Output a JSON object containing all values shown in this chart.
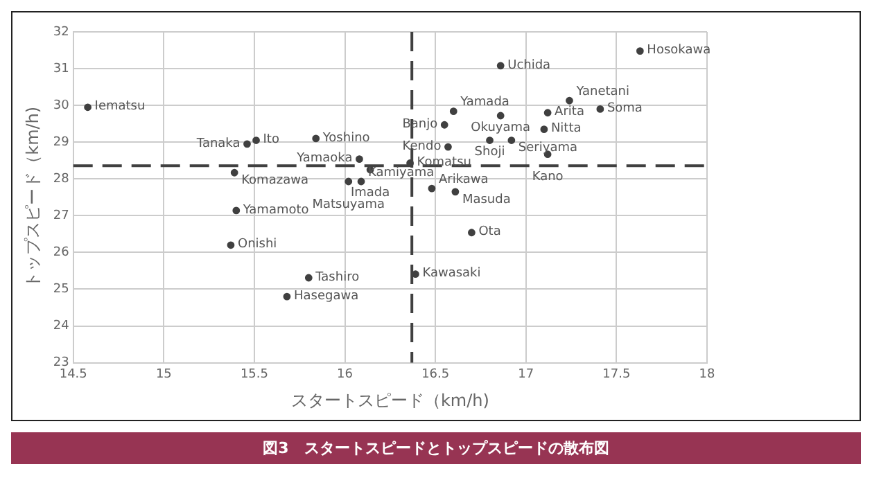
{
  "chart_data": {
    "type": "scatter",
    "title": "図3　スタートスピードとトップスピードの散布図",
    "xlabel": "スタートスピード（km/h)",
    "ylabel": "トップスピード（km/h)",
    "x": [
      14.58,
      15.51,
      15.46,
      15.84,
      16.08,
      16.14,
      15.39,
      16.02,
      16.09,
      15.4,
      15.37,
      15.8,
      15.68,
      16.39,
      17.63,
      16.86,
      17.24,
      17.12,
      17.41,
      16.6,
      16.86,
      16.55,
      17.1,
      16.8,
      16.92,
      16.57,
      17.12,
      16.36,
      16.48,
      16.61,
      16.7
    ],
    "values": [
      29.95,
      29.05,
      28.95,
      29.1,
      28.54,
      28.25,
      28.17,
      27.93,
      27.93,
      27.14,
      26.2,
      25.31,
      24.8,
      25.41,
      31.48,
      31.08,
      30.13,
      29.8,
      29.9,
      29.84,
      29.72,
      29.47,
      29.35,
      29.05,
      29.05,
      28.87,
      28.67,
      28.43,
      27.74,
      27.65,
      26.54
    ],
    "color": "#404040",
    "marker": "circle",
    "annotations": [
      {
        "text": "Iematsu",
        "x": 14.58,
        "y": 29.95
      },
      {
        "text": "Ito",
        "x": 15.51,
        "y": 29.05
      },
      {
        "text": "Tanaka",
        "x": 15.46,
        "y": 28.95
      },
      {
        "text": "Yoshino",
        "x": 15.84,
        "y": 29.1
      },
      {
        "text": "Yamaoka",
        "x": 16.08,
        "y": 28.54
      },
      {
        "text": "Imada",
        "x": 16.14,
        "y": 28.25
      },
      {
        "text": "Komazawa",
        "x": 15.39,
        "y": 28.17
      },
      {
        "text": "Matsuyama",
        "x": 16.02,
        "y": 27.93
      },
      {
        "text": "Kamiyama",
        "x": 16.09,
        "y": 27.93
      },
      {
        "text": "Yamamoto",
        "x": 15.4,
        "y": 27.14
      },
      {
        "text": "Onishi",
        "x": 15.37,
        "y": 26.2
      },
      {
        "text": "Tashiro",
        "x": 15.8,
        "y": 25.31
      },
      {
        "text": "Hasegawa",
        "x": 15.68,
        "y": 24.8
      },
      {
        "text": "Kawasaki",
        "x": 16.39,
        "y": 25.41
      },
      {
        "text": "Hosokawa",
        "x": 17.63,
        "y": 31.48
      },
      {
        "text": "Uchida",
        "x": 16.86,
        "y": 31.08
      },
      {
        "text": "Yanetani",
        "x": 17.24,
        "y": 30.13
      },
      {
        "text": "Arita",
        "x": 17.12,
        "y": 29.8
      },
      {
        "text": "Soma",
        "x": 17.41,
        "y": 29.9
      },
      {
        "text": "Yamada",
        "x": 16.6,
        "y": 29.84
      },
      {
        "text": "Okuyama",
        "x": 16.86,
        "y": 29.72
      },
      {
        "text": "Banjo",
        "x": 16.55,
        "y": 29.47
      },
      {
        "text": "Nitta",
        "x": 17.1,
        "y": 29.35
      },
      {
        "text": "Shoji",
        "x": 16.8,
        "y": 29.05
      },
      {
        "text": "Seriyama",
        "x": 16.92,
        "y": 29.05
      },
      {
        "text": "Kendo",
        "x": 16.57,
        "y": 28.87
      },
      {
        "text": "Kano",
        "x": 17.12,
        "y": 28.67
      },
      {
        "text": "Komatsu",
        "x": 16.36,
        "y": 28.43
      },
      {
        "text": "Arikawa",
        "x": 16.48,
        "y": 27.74
      },
      {
        "text": "Masuda",
        "x": 16.61,
        "y": 27.65
      },
      {
        "text": "Ota",
        "x": 16.7,
        "y": 26.54
      }
    ],
    "ref_lines": [
      {
        "axis": "x",
        "value": 16.37,
        "color": "#404040",
        "line_style": "dashed"
      },
      {
        "axis": "y",
        "value": 28.36,
        "color": "#404040",
        "line_style": "dashed"
      }
    ],
    "xlim": [
      14.5,
      18
    ],
    "xticks": [
      14.5,
      15,
      15.5,
      16,
      16.5,
      17,
      17.5,
      18
    ],
    "ylim": [
      23,
      32
    ],
    "yticks": [
      23,
      24,
      25,
      26,
      27,
      28,
      29,
      30,
      31,
      32
    ],
    "grid": true,
    "legend": false
  }
}
